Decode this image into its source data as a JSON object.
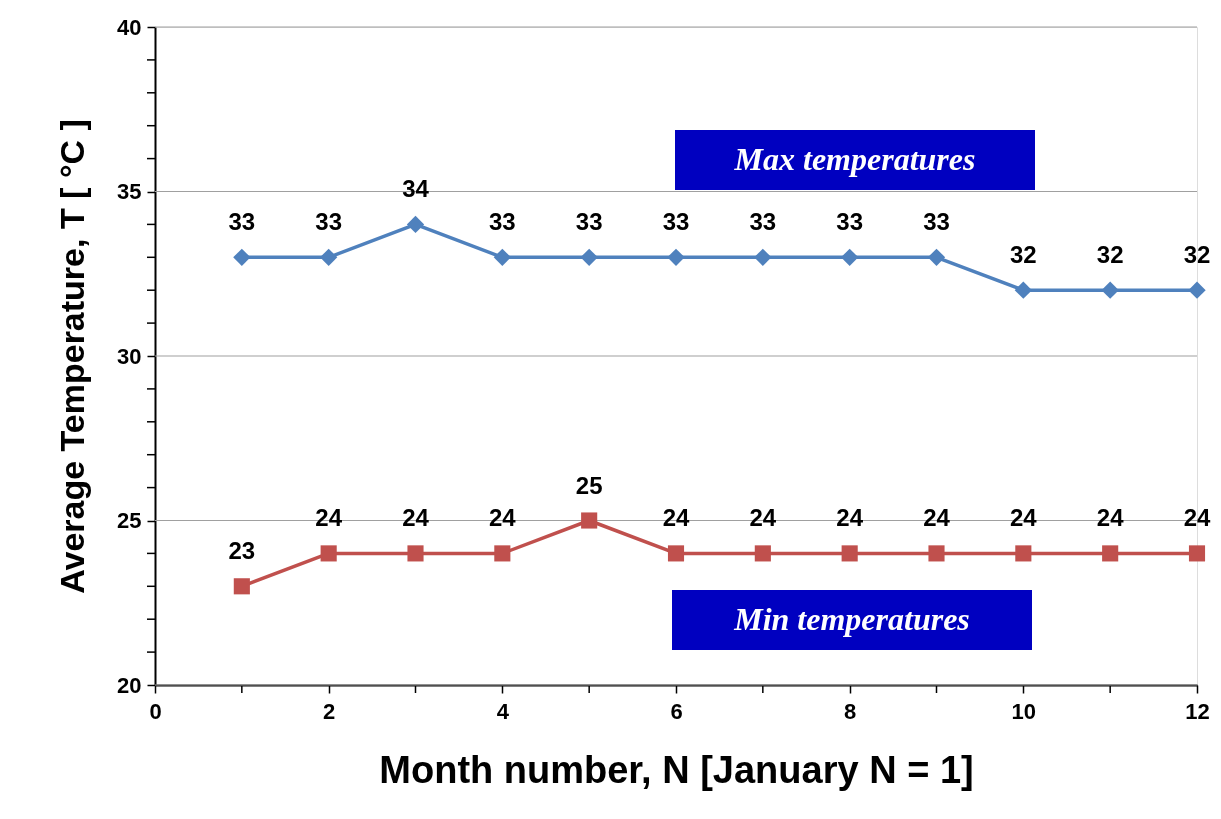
{
  "chart_data": {
    "type": "line",
    "xlabel": "Month number, N [January N = 1]",
    "ylabel": "Average Temperature, T [ °C ]",
    "x": [
      1,
      2,
      3,
      4,
      5,
      6,
      7,
      8,
      9,
      10,
      11,
      12
    ],
    "series": [
      {
        "name": "Max temperatures",
        "color": "#4f81bd",
        "marker": "diamond",
        "values": [
          33,
          33,
          34,
          33,
          33,
          33,
          33,
          33,
          33,
          32,
          32,
          32
        ]
      },
      {
        "name": "Min temperatures",
        "color": "#c0504d",
        "marker": "square",
        "values": [
          23,
          24,
          24,
          24,
          25,
          24,
          24,
          24,
          24,
          24,
          24,
          24
        ]
      }
    ],
    "xlim": [
      0,
      12
    ],
    "xticks": [
      0,
      {
        "value": 1,
        "label": null
      },
      2,
      {
        "value": 3,
        "label": null
      },
      4,
      {
        "value": 5,
        "label": null
      },
      6,
      {
        "value": 7,
        "label": null
      },
      8,
      {
        "value": 9,
        "label": null
      },
      10,
      {
        "value": 11,
        "label": null
      },
      12
    ],
    "ylim": [
      20,
      40
    ],
    "yticks": [
      20,
      {
        "value": 21,
        "label": null
      },
      {
        "value": 22,
        "label": null
      },
      {
        "value": 23,
        "label": null
      },
      {
        "value": 24,
        "label": null
      },
      25,
      {
        "value": 26,
        "label": null
      },
      {
        "value": 27,
        "label": null
      },
      {
        "value": 28,
        "label": null
      },
      {
        "value": 29,
        "label": null
      },
      30,
      {
        "value": 31,
        "label": null
      },
      {
        "value": 32,
        "label": null
      },
      {
        "value": 33,
        "label": null
      },
      {
        "value": 34,
        "label": null
      },
      35,
      {
        "value": 36,
        "label": null
      },
      {
        "value": 37,
        "label": null
      },
      {
        "value": 38,
        "label": null
      },
      {
        "value": 39,
        "label": null
      },
      40
    ],
    "grid": "y",
    "data_labels": true,
    "line_style": "solid"
  }
}
